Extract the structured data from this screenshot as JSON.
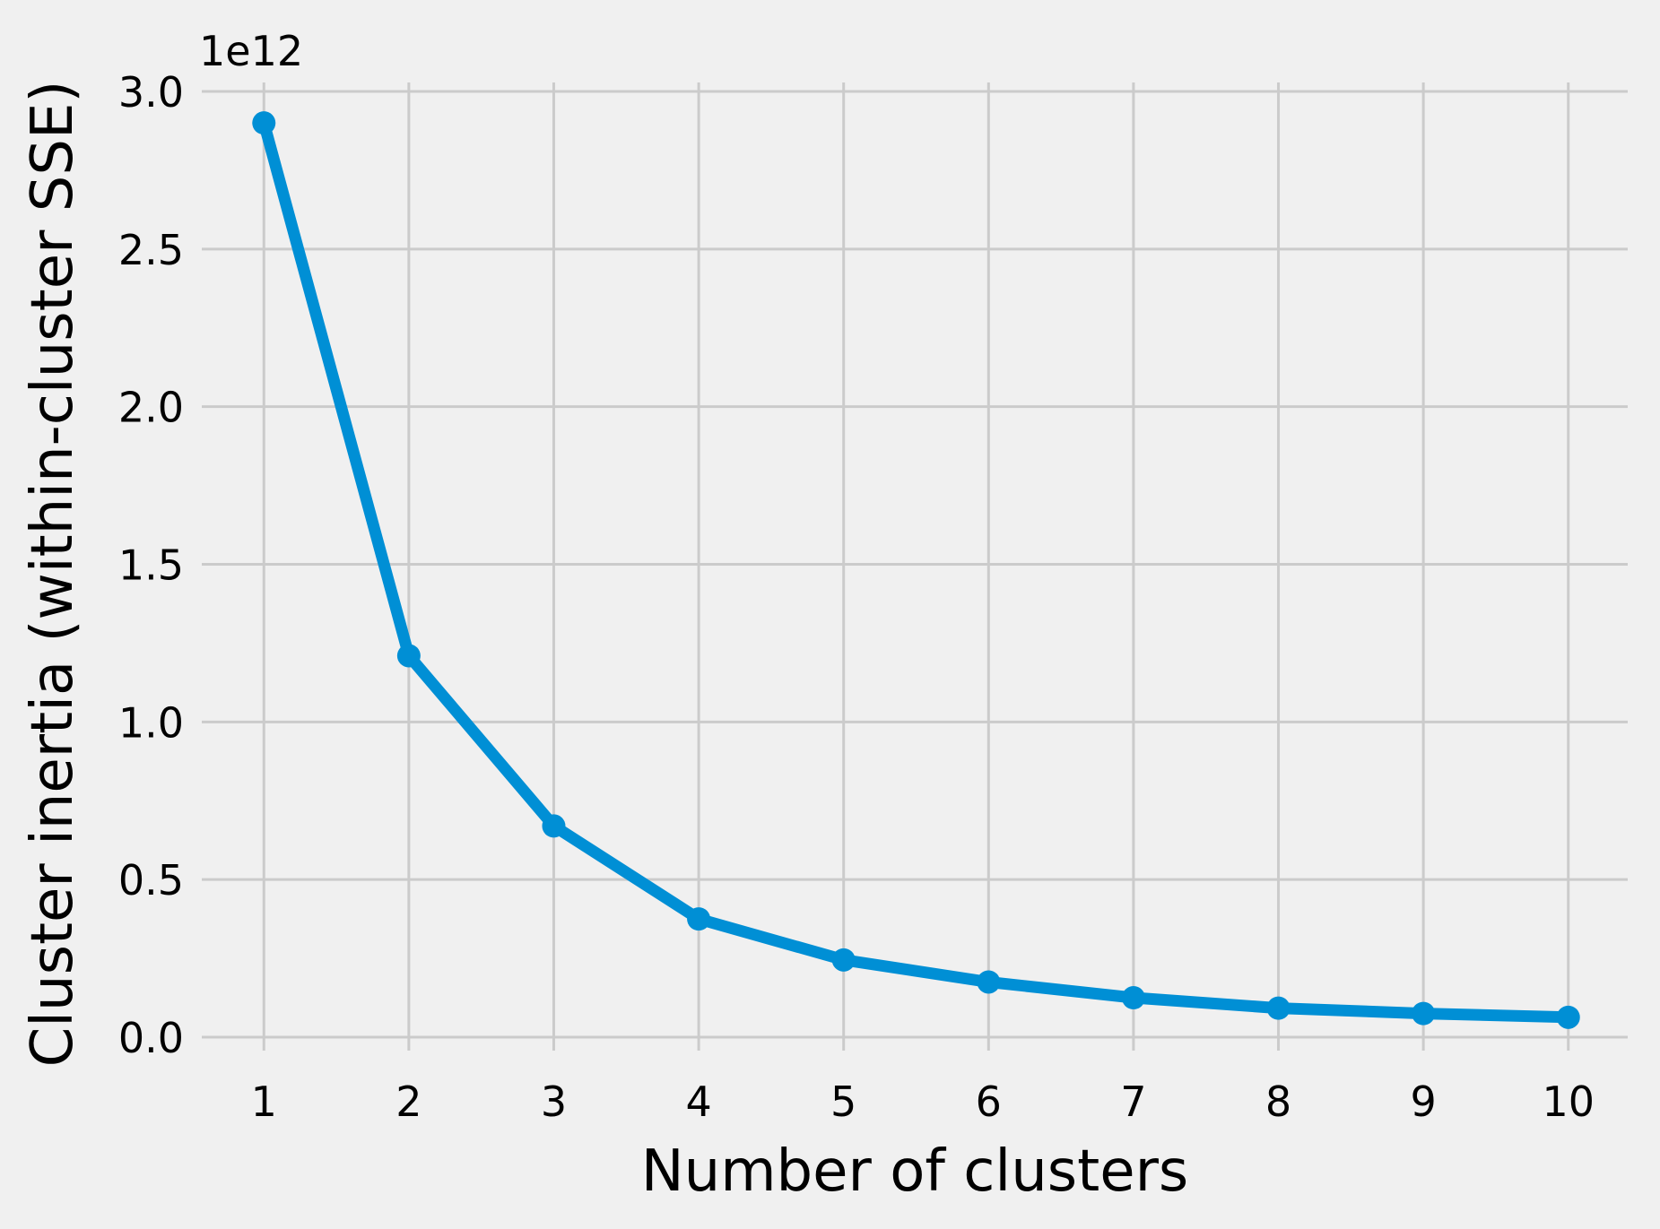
{
  "chart_data": {
    "type": "line",
    "title": "",
    "xlabel": "Number of clusters",
    "ylabel": "Cluster inertia (within-cluster SSE)",
    "y_offset_label": "1e12",
    "x": [
      1,
      2,
      3,
      4,
      5,
      6,
      7,
      8,
      9,
      10
    ],
    "series": [
      {
        "values": [
          2.9,
          1.21,
          0.67,
          0.375,
          0.245,
          0.175,
          0.125,
          0.092,
          0.075,
          0.063
        ],
        "color": "#008fd5",
        "marker": "circle"
      }
    ],
    "x_ticks": [
      1,
      2,
      3,
      4,
      5,
      6,
      7,
      8,
      9,
      10
    ],
    "x_tick_labels": [
      "1",
      "2",
      "3",
      "4",
      "5",
      "6",
      "7",
      "8",
      "9",
      "10"
    ],
    "y_ticks": [
      0.0,
      0.5,
      1.0,
      1.5,
      2.0,
      2.5,
      3.0
    ],
    "y_tick_labels": [
      "0.0",
      "0.5",
      "1.0",
      "1.5",
      "2.0",
      "2.5",
      "3.0"
    ],
    "xlim": [
      0.59,
      10.41
    ],
    "ylim": [
      -0.0,
      3.0
    ],
    "grid": true,
    "grid_color": "#cbcbcb",
    "background_color": "#f0f0f0"
  }
}
